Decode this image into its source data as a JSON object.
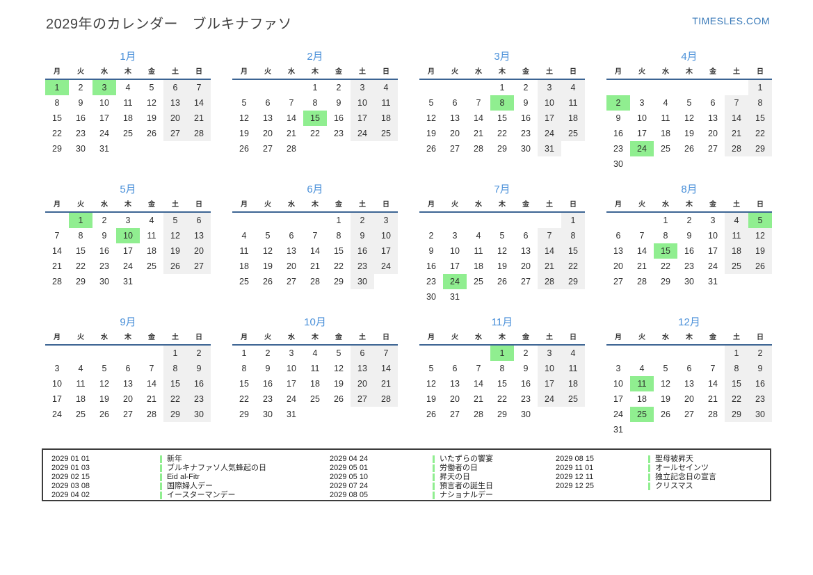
{
  "header": {
    "title": "2029年のカレンダー　ブルキナファソ",
    "brand": "TIMESLES.COM"
  },
  "weekdays": [
    "月",
    "火",
    "水",
    "木",
    "金",
    "土",
    "日"
  ],
  "months": [
    {
      "name": "1月",
      "weeks": [
        [
          1,
          2,
          3,
          4,
          5,
          6,
          7
        ],
        [
          8,
          9,
          10,
          11,
          12,
          13,
          14
        ],
        [
          15,
          16,
          17,
          18,
          19,
          20,
          21
        ],
        [
          22,
          23,
          24,
          25,
          26,
          27,
          28
        ],
        [
          29,
          30,
          31,
          null,
          null,
          null,
          null
        ]
      ],
      "holidays": [
        1,
        3
      ]
    },
    {
      "name": "2月",
      "weeks": [
        [
          null,
          null,
          null,
          1,
          2,
          3,
          4
        ],
        [
          5,
          6,
          7,
          8,
          9,
          10,
          11
        ],
        [
          12,
          13,
          14,
          15,
          16,
          17,
          18
        ],
        [
          19,
          20,
          21,
          22,
          23,
          24,
          25
        ],
        [
          26,
          27,
          28,
          null,
          null,
          null,
          null
        ]
      ],
      "holidays": [
        15
      ]
    },
    {
      "name": "3月",
      "weeks": [
        [
          null,
          null,
          null,
          1,
          2,
          3,
          4
        ],
        [
          5,
          6,
          7,
          8,
          9,
          10,
          11
        ],
        [
          12,
          13,
          14,
          15,
          16,
          17,
          18
        ],
        [
          19,
          20,
          21,
          22,
          23,
          24,
          25
        ],
        [
          26,
          27,
          28,
          29,
          30,
          31,
          null
        ]
      ],
      "holidays": [
        8
      ]
    },
    {
      "name": "4月",
      "weeks": [
        [
          null,
          null,
          null,
          null,
          null,
          null,
          1
        ],
        [
          2,
          3,
          4,
          5,
          6,
          7,
          8
        ],
        [
          9,
          10,
          11,
          12,
          13,
          14,
          15
        ],
        [
          16,
          17,
          18,
          19,
          20,
          21,
          22
        ],
        [
          23,
          24,
          25,
          26,
          27,
          28,
          29
        ],
        [
          30,
          null,
          null,
          null,
          null,
          null,
          null
        ]
      ],
      "holidays": [
        2,
        24
      ]
    },
    {
      "name": "5月",
      "weeks": [
        [
          null,
          1,
          2,
          3,
          4,
          5,
          6
        ],
        [
          7,
          8,
          9,
          10,
          11,
          12,
          13
        ],
        [
          14,
          15,
          16,
          17,
          18,
          19,
          20
        ],
        [
          21,
          22,
          23,
          24,
          25,
          26,
          27
        ],
        [
          28,
          29,
          30,
          31,
          null,
          null,
          null
        ]
      ],
      "holidays": [
        1,
        10
      ]
    },
    {
      "name": "6月",
      "weeks": [
        [
          null,
          null,
          null,
          null,
          1,
          2,
          3
        ],
        [
          4,
          5,
          6,
          7,
          8,
          9,
          10
        ],
        [
          11,
          12,
          13,
          14,
          15,
          16,
          17
        ],
        [
          18,
          19,
          20,
          21,
          22,
          23,
          24
        ],
        [
          25,
          26,
          27,
          28,
          29,
          30,
          null
        ]
      ],
      "holidays": []
    },
    {
      "name": "7月",
      "weeks": [
        [
          null,
          null,
          null,
          null,
          null,
          null,
          1
        ],
        [
          2,
          3,
          4,
          5,
          6,
          7,
          8
        ],
        [
          9,
          10,
          11,
          12,
          13,
          14,
          15
        ],
        [
          16,
          17,
          18,
          19,
          20,
          21,
          22
        ],
        [
          23,
          24,
          25,
          26,
          27,
          28,
          29
        ],
        [
          30,
          31,
          null,
          null,
          null,
          null,
          null
        ]
      ],
      "holidays": [
        24
      ]
    },
    {
      "name": "8月",
      "weeks": [
        [
          null,
          null,
          1,
          2,
          3,
          4,
          5
        ],
        [
          6,
          7,
          8,
          9,
          10,
          11,
          12
        ],
        [
          13,
          14,
          15,
          16,
          17,
          18,
          19
        ],
        [
          20,
          21,
          22,
          23,
          24,
          25,
          26
        ],
        [
          27,
          28,
          29,
          30,
          31,
          null,
          null
        ]
      ],
      "holidays": [
        5,
        15
      ]
    },
    {
      "name": "9月",
      "weeks": [
        [
          null,
          null,
          null,
          null,
          null,
          1,
          2
        ],
        [
          3,
          4,
          5,
          6,
          7,
          8,
          9
        ],
        [
          10,
          11,
          12,
          13,
          14,
          15,
          16
        ],
        [
          17,
          18,
          19,
          20,
          21,
          22,
          23
        ],
        [
          24,
          25,
          26,
          27,
          28,
          29,
          30
        ]
      ],
      "holidays": []
    },
    {
      "name": "10月",
      "weeks": [
        [
          1,
          2,
          3,
          4,
          5,
          6,
          7
        ],
        [
          8,
          9,
          10,
          11,
          12,
          13,
          14
        ],
        [
          15,
          16,
          17,
          18,
          19,
          20,
          21
        ],
        [
          22,
          23,
          24,
          25,
          26,
          27,
          28
        ],
        [
          29,
          30,
          31,
          null,
          null,
          null,
          null
        ]
      ],
      "holidays": []
    },
    {
      "name": "11月",
      "weeks": [
        [
          null,
          null,
          null,
          1,
          2,
          3,
          4
        ],
        [
          5,
          6,
          7,
          8,
          9,
          10,
          11
        ],
        [
          12,
          13,
          14,
          15,
          16,
          17,
          18
        ],
        [
          19,
          20,
          21,
          22,
          23,
          24,
          25
        ],
        [
          26,
          27,
          28,
          29,
          30,
          null,
          null
        ]
      ],
      "holidays": [
        1
      ]
    },
    {
      "name": "12月",
      "weeks": [
        [
          null,
          null,
          null,
          null,
          null,
          1,
          2
        ],
        [
          3,
          4,
          5,
          6,
          7,
          8,
          9
        ],
        [
          10,
          11,
          12,
          13,
          14,
          15,
          16
        ],
        [
          17,
          18,
          19,
          20,
          21,
          22,
          23
        ],
        [
          24,
          25,
          26,
          27,
          28,
          29,
          30
        ],
        [
          31,
          null,
          null,
          null,
          null,
          null,
          null
        ]
      ],
      "holidays": [
        11,
        25
      ]
    }
  ],
  "legend_groups": [
    [
      {
        "date": "2029 01 01",
        "name": "新年"
      },
      {
        "date": "2029 01 03",
        "name": "ブルキナファソ人気蜂起の日"
      },
      {
        "date": "2029 02 15",
        "name": "Eid al-Fitr"
      },
      {
        "date": "2029 03 08",
        "name": "国際婦人デー"
      },
      {
        "date": "2029 04 02",
        "name": "イースターマンデー"
      }
    ],
    [
      {
        "date": "2029 04 24",
        "name": "いたずらの饗宴"
      },
      {
        "date": "2029 05 01",
        "name": "労働者の日"
      },
      {
        "date": "2029 05 10",
        "name": "昇天の日"
      },
      {
        "date": "2029 07 24",
        "name": "預言者の誕生日"
      },
      {
        "date": "2029 08 05",
        "name": "ナショナルデー"
      }
    ],
    [
      {
        "date": "2029 08 15",
        "name": "聖母被昇天"
      },
      {
        "date": "2029 11 01",
        "name": "オールセインツ"
      },
      {
        "date": "2029 12 11",
        "name": "独立記念日の宣言"
      },
      {
        "date": "2029 12 25",
        "name": "クリスマス"
      }
    ]
  ],
  "colors": {
    "holiday": "#90ee90",
    "weekend": "#f0f0f0",
    "month_title": "#4a90d9",
    "header_line": "#3c6493",
    "brand": "#3879b8"
  }
}
